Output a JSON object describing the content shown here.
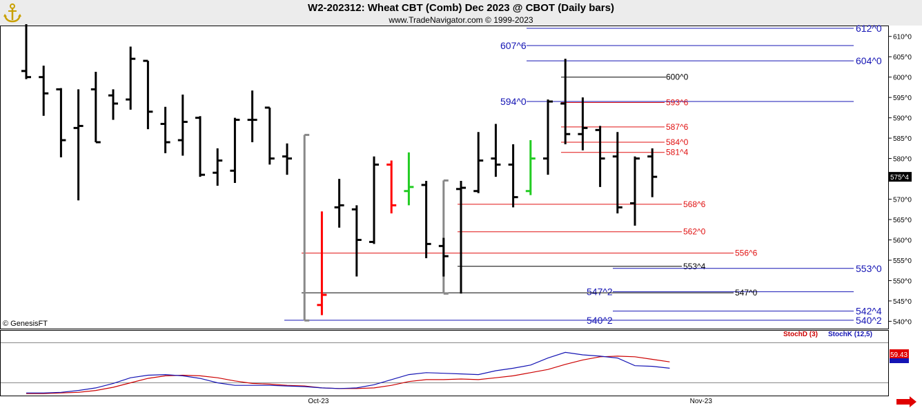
{
  "header": {
    "title": "W2-202312:  Wheat CBT (Comb) Dec 2023 @ CBOT  (Daily bars)",
    "subtitle": "www.TradeNavigator.com © 1999-2023",
    "logo_icon": "gold-anchor-logo"
  },
  "watermark": "© GenesisFT",
  "chart_data": [
    {
      "type": "ohlc",
      "title": "W2-202312:  Wheat CBT (Comb) Dec 2023 @ CBOT  (Daily bars)",
      "y_ticks": [
        "540^0",
        "545^0",
        "550^0",
        "555^0",
        "560^0",
        "565^0",
        "570^0",
        "575^0",
        "580^0",
        "585^0",
        "590^0",
        "595^0",
        "600^0",
        "605^0",
        "610^0"
      ],
      "y_tick_values": [
        540,
        545,
        550,
        555,
        560,
        565,
        570,
        575,
        580,
        585,
        590,
        595,
        600,
        605,
        610
      ],
      "ylim": [
        538.2,
        612.5
      ],
      "last_price_label": "575^4",
      "last_price": 575.5,
      "x_labels": [
        {
          "label": "Oct-23",
          "bar": 17
        },
        {
          "label": "Nov-23",
          "bar": 39
        }
      ],
      "colors": {
        "bar": "#000000",
        "up_signal": "#ff0000",
        "down_signal": "#22cc22",
        "swing": "#888888",
        "blue_level": "#1414b4",
        "red_level": "#e01010",
        "black_level": "#000000"
      },
      "bars": [
        {
          "o": 601.5,
          "h": 613.0,
          "l": 599.5,
          "c": 600.0
        },
        {
          "o": 600.0,
          "h": 602.8,
          "l": 590.5,
          "c": 596.0
        },
        {
          "o": 597.0,
          "h": 597.3,
          "l": 580.3,
          "c": 584.5
        },
        {
          "o": 587.5,
          "h": 597.0,
          "l": 569.7,
          "c": 588.0
        },
        {
          "o": 597.0,
          "h": 601.3,
          "l": 584.0,
          "c": 584.0
        },
        {
          "o": 595.5,
          "h": 597.0,
          "l": 589.5,
          "c": 593.5
        },
        {
          "o": 594.5,
          "h": 607.5,
          "l": 592.0,
          "c": 604.5
        },
        {
          "o": 604.0,
          "h": 604.0,
          "l": 587.2,
          "c": 591.5
        },
        {
          "o": 588.5,
          "h": 592.7,
          "l": 581.3,
          "c": 584.0
        },
        {
          "o": 584.5,
          "h": 595.7,
          "l": 580.7,
          "c": 589.0
        },
        {
          "o": 590.0,
          "h": 590.4,
          "l": 575.5,
          "c": 576.0
        },
        {
          "o": 576.5,
          "h": 582.5,
          "l": 573.3,
          "c": 579.5
        },
        {
          "o": 577.0,
          "h": 590.0,
          "l": 574.0,
          "c": 589.5
        },
        {
          "o": 589.5,
          "h": 596.7,
          "l": 584.0,
          "c": 589.5
        },
        {
          "o": 592.5,
          "h": 592.5,
          "l": 578.5,
          "c": 580.0
        },
        {
          "o": 580.5,
          "h": 583.7,
          "l": 576.0,
          "c": 580.0
        },
        {
          "o": 568.5,
          "h": 570.8,
          "l": 569.0,
          "c": 569.0
        },
        {
          "o": 544.0,
          "h": 567.0,
          "l": 541.5,
          "c": 546.5
        },
        {
          "o": 568.0,
          "h": 575.0,
          "l": 563.0,
          "c": 568.5
        },
        {
          "o": 567.5,
          "h": 568.5,
          "l": 551.0,
          "c": 560.0
        },
        {
          "o": 559.5,
          "h": 580.5,
          "l": 559.0,
          "c": 578.5
        },
        {
          "o": 578.5,
          "h": 579.5,
          "l": 566.5,
          "c": 568.5
        },
        {
          "o": 572.0,
          "h": 581.5,
          "l": 568.5,
          "c": 573.0
        },
        {
          "o": 573.5,
          "h": 574.5,
          "l": 555.5,
          "c": 559.0
        },
        {
          "o": 558.5,
          "h": 560.5,
          "l": 551.0,
          "c": 556.0
        },
        {
          "o": 572.5,
          "h": 574.5,
          "l": 546.8,
          "c": 572.8
        },
        {
          "o": 572.0,
          "h": 586.5,
          "l": 571.5,
          "c": 579.5
        },
        {
          "o": 580.0,
          "h": 588.5,
          "l": 575.5,
          "c": 578.5
        },
        {
          "o": 578.5,
          "h": 583.5,
          "l": 568.0,
          "c": 570.5
        },
        {
          "o": 572.0,
          "h": 584.5,
          "l": 571.0,
          "c": 580.0
        },
        {
          "o": 580.0,
          "h": 594.5,
          "l": 576.0,
          "c": 594.0
        },
        {
          "o": 593.5,
          "h": 604.5,
          "l": 583.5,
          "c": 586.0
        },
        {
          "o": 586.0,
          "h": 595.0,
          "l": 582.0,
          "c": 587.5
        },
        {
          "o": 587.0,
          "h": 588.0,
          "l": 573.0,
          "c": 580.0
        },
        {
          "o": 580.5,
          "h": 586.5,
          "l": 566.5,
          "c": 568.0
        },
        {
          "o": 569.0,
          "h": 580.5,
          "l": 563.5,
          "c": 580.0
        },
        {
          "o": 580.5,
          "h": 582.5,
          "l": 570.5,
          "c": 575.5
        }
      ],
      "bar_colors": {
        "17": "#ff0000",
        "21": "#ff0000",
        "22": "#22cc22",
        "29": "#22cc22"
      },
      "swing_markers": [
        {
          "bar": 16,
          "from": 585.8,
          "to": 540.2
        },
        {
          "bar": 24,
          "from": 574.6,
          "to": 546.8
        }
      ],
      "levels": [
        {
          "label": "612^0",
          "value": 612.0,
          "color": "#1414b4",
          "label_side": "right"
        },
        {
          "label": "607^6",
          "value": 607.75,
          "color": "#1414b4",
          "label_side": "left"
        },
        {
          "label": "604^0",
          "value": 604.0,
          "color": "#1414b4",
          "label_side": "right"
        },
        {
          "label": "600^0",
          "value": 600.0,
          "color": "#000000",
          "label_side": "mid"
        },
        {
          "label": "594^0",
          "value": 594.0,
          "color": "#1414b4",
          "label_side": "left"
        },
        {
          "label": "593^6",
          "value": 593.75,
          "color": "#e01010",
          "label_side": "mid"
        },
        {
          "label": "587^6",
          "value": 587.75,
          "color": "#e01010",
          "label_side": "mid"
        },
        {
          "label": "584^0",
          "value": 584.0,
          "color": "#e01010",
          "label_side": "mid"
        },
        {
          "label": "581^4",
          "value": 581.5,
          "color": "#e01010",
          "label_side": "mid"
        },
        {
          "label": "568^6",
          "value": 568.75,
          "color": "#e01010",
          "label_side": "mid"
        },
        {
          "label": "562^0",
          "value": 562.0,
          "color": "#e01010",
          "label_side": "mid"
        },
        {
          "label": "556^6",
          "value": 556.75,
          "color": "#e01010",
          "label_side": "mid"
        },
        {
          "label": "553^4",
          "value": 553.5,
          "color": "#000000",
          "label_side": "mid"
        },
        {
          "label": "553^0",
          "value": 553.0,
          "color": "#1414b4",
          "label_side": "right"
        },
        {
          "label": "547^2",
          "value": 547.25,
          "color": "#1414b4",
          "label_side": "left"
        },
        {
          "label": "547^0",
          "value": 547.0,
          "color": "#000000",
          "label_side": "mid"
        },
        {
          "label": "542^4",
          "value": 542.5,
          "color": "#1414b4",
          "label_side": "right"
        },
        {
          "label": "540^2",
          "value": 540.25,
          "color": "#1414b4",
          "label_side": "left"
        },
        {
          "label": "540^2",
          "value": 540.25,
          "color": "#1414b4",
          "label_side": "right"
        }
      ]
    },
    {
      "type": "line",
      "title": "",
      "legend": [
        {
          "label": "StochD (3)",
          "color": "#cc0000"
        },
        {
          "label": "StochK (12,5)",
          "color": "#1414b4"
        }
      ],
      "last_value_label": "59.43",
      "ylim": [
        0,
        100
      ],
      "series": [
        {
          "name": "StochD (3)",
          "color": "#cc0000",
          "values": [
            2,
            2,
            3,
            4,
            7,
            12,
            19,
            26,
            30,
            31,
            30,
            27,
            22,
            18,
            17,
            15,
            14,
            11,
            10,
            10,
            11,
            15,
            21,
            24,
            24,
            25,
            24,
            27,
            30,
            35,
            40,
            48,
            55,
            60,
            61,
            60,
            56,
            52
          ]
        },
        {
          "name": "StochK (12,5)",
          "color": "#1414b4",
          "values": [
            3,
            3,
            4,
            7,
            11,
            18,
            27,
            31,
            32,
            30,
            26,
            19,
            15,
            15,
            15,
            14,
            13,
            11,
            10,
            11,
            16,
            24,
            32,
            35,
            34,
            33,
            32,
            38,
            42,
            47,
            58,
            67,
            63,
            61,
            58,
            46,
            45,
            42
          ]
        }
      ]
    }
  ]
}
